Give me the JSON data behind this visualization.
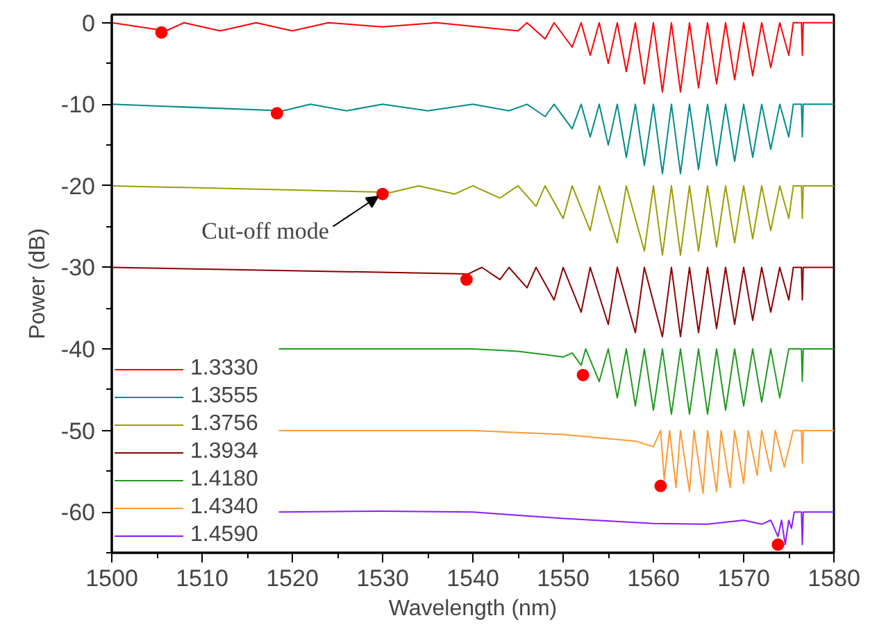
{
  "chart_data": {
    "type": "line",
    "xlabel": "Wavelength (nm)",
    "ylabel": "Power (dB)",
    "xlim": [
      1500,
      1580
    ],
    "ylim": [
      -65,
      1
    ],
    "xticks": [
      1500,
      {
        "value": 1505,
        "label": null
      },
      1510,
      {
        "value": 1515,
        "label": null
      },
      1520,
      {
        "value": 1525,
        "label": null
      },
      1530,
      {
        "value": 1535,
        "label": null
      },
      1540,
      {
        "value": 1545,
        "label": null
      },
      1550,
      {
        "value": 1555,
        "label": null
      },
      1560,
      {
        "value": 1565,
        "label": null
      },
      1570,
      {
        "value": 1575,
        "label": null
      },
      1580
    ],
    "yticks": [
      0,
      {
        "value": -5,
        "label": null
      },
      -10,
      {
        "value": -15,
        "label": null
      },
      -20,
      {
        "value": -25,
        "label": null
      },
      -30,
      {
        "value": -35,
        "label": null
      },
      -40,
      {
        "value": -45,
        "label": null
      },
      -50,
      {
        "value": -55,
        "label": null
      },
      -60,
      {
        "value": -65,
        "label": null
      }
    ],
    "grid": false,
    "legend": "bottom left",
    "marker": "none",
    "line_style": "solid",
    "annotations": [
      {
        "text": "Cut-off mode",
        "x": 1530,
        "y": -21
      }
    ],
    "series": [
      {
        "name": "1.3330",
        "color": "#ff0000",
        "x": [
          1500,
          1506,
          1508,
          1512,
          1516,
          1520,
          1524,
          1530,
          1536,
          1545,
          1546,
          1548,
          1549,
          1551,
          1552,
          1553,
          1554,
          1555,
          1556,
          1557,
          1558,
          1559,
          1560,
          1561,
          1562,
          1563,
          1564,
          1565,
          1566,
          1567,
          1568,
          1569,
          1570,
          1571,
          1572,
          1573,
          1574,
          1575,
          1575.5,
          1576.4,
          1576.5,
          1576.6,
          1580
        ],
        "values": [
          0,
          -1,
          0,
          -1,
          0,
          -1,
          0,
          -0.5,
          0,
          -1,
          0,
          -2,
          0,
          -3,
          0,
          -4,
          0,
          -5,
          0,
          -6,
          0,
          -7.5,
          0,
          -8.5,
          0,
          -8.5,
          0,
          -8,
          0,
          -7.5,
          0,
          -7,
          0,
          -6.5,
          0,
          -5.5,
          0,
          -4,
          0,
          0,
          -4,
          0,
          0
        ]
      },
      {
        "name": "1.3555",
        "color": "#008b8b",
        "x": [
          1500,
          1519,
          1522,
          1526,
          1530,
          1535,
          1540,
          1544,
          1546,
          1548,
          1549,
          1551,
          1552,
          1553,
          1554,
          1555,
          1556,
          1557,
          1558,
          1559,
          1560,
          1561,
          1562,
          1563,
          1564,
          1565,
          1566,
          1567,
          1568,
          1569,
          1570,
          1571,
          1572,
          1573,
          1574,
          1575,
          1575.5,
          1576.4,
          1576.5,
          1576.6,
          1580
        ],
        "values": [
          -10,
          -10.8,
          -10,
          -10.8,
          -10,
          -10.8,
          -10,
          -10.8,
          -10,
          -11.5,
          -10,
          -13,
          -10,
          -14,
          -10,
          -15,
          -10,
          -16.5,
          -10,
          -17.5,
          -10,
          -18.5,
          -10,
          -18.5,
          -10,
          -18,
          -10,
          -17.5,
          -10,
          -17,
          -10,
          -16.5,
          -10,
          -15.5,
          -10,
          -14,
          -10,
          -10,
          -14,
          -10,
          -10
        ]
      },
      {
        "name": "1.3756",
        "color": "#9c9c00",
        "x": [
          1500,
          1531,
          1534,
          1538,
          1540,
          1543,
          1545,
          1547,
          1548,
          1550,
          1551,
          1553,
          1554,
          1556,
          1557,
          1559,
          1560,
          1561,
          1562,
          1563,
          1564,
          1565,
          1566,
          1567,
          1568,
          1569,
          1570,
          1571,
          1572,
          1573,
          1574,
          1575,
          1575.5,
          1576.4,
          1576.5,
          1576.6,
          1580
        ],
        "values": [
          -20,
          -20.8,
          -20,
          -21,
          -20,
          -21.5,
          -20,
          -22.5,
          -20,
          -24,
          -20,
          -25.5,
          -20,
          -27,
          -20,
          -28,
          -20,
          -28.5,
          -20,
          -28.5,
          -20,
          -28,
          -20,
          -27.5,
          -20,
          -27,
          -20,
          -26.5,
          -20,
          -25.5,
          -20,
          -24,
          -20,
          -20,
          -24,
          -20,
          -20
        ]
      },
      {
        "name": "1.3934",
        "color": "#8b0000",
        "x": [
          1500,
          1539.5,
          1541,
          1543,
          1544,
          1546,
          1547,
          1549,
          1550,
          1552,
          1553,
          1555,
          1556,
          1558,
          1559,
          1561,
          1562,
          1563,
          1564,
          1565,
          1566,
          1567,
          1568,
          1569,
          1570,
          1571,
          1572,
          1573,
          1574,
          1575,
          1575.5,
          1576.4,
          1576.5,
          1576.6,
          1580
        ],
        "values": [
          -30,
          -30.8,
          -30,
          -31.5,
          -30,
          -32.5,
          -30,
          -34,
          -30,
          -35.5,
          -30,
          -37,
          -30,
          -38,
          -30,
          -38.5,
          -30,
          -38.5,
          -30,
          -38,
          -30,
          -37.5,
          -30,
          -37,
          -30,
          -36.5,
          -30,
          -35.5,
          -30,
          -34,
          -30,
          -30,
          -34,
          -30,
          -30
        ]
      },
      {
        "name": "1.4180",
        "color": "#1e9a1e",
        "x": [
          1518.5,
          1540,
          1545,
          1548,
          1550,
          1551,
          1552,
          1552.5,
          1554,
          1555,
          1556,
          1557,
          1558,
          1559,
          1560,
          1561,
          1562,
          1563,
          1564,
          1565,
          1566,
          1567,
          1568,
          1569,
          1570,
          1571,
          1572,
          1573,
          1574,
          1575,
          1575.5,
          1576.4,
          1576.5,
          1576.6,
          1580
        ],
        "values": [
          -40,
          -40,
          -40.3,
          -40.7,
          -41,
          -40.5,
          -42,
          -40,
          -44,
          -40,
          -46,
          -40,
          -47,
          -40,
          -47.5,
          -40,
          -48,
          -40,
          -48,
          -40,
          -48,
          -40,
          -47.5,
          -40,
          -47,
          -40,
          -46.5,
          -40,
          -46,
          -40,
          -40,
          -40,
          -44,
          -40,
          -40
        ]
      },
      {
        "name": "1.4340",
        "color": "#ff9933",
        "x": [
          1518.5,
          1540,
          1550,
          1555,
          1558,
          1560,
          1560.8,
          1561.2,
          1561.8,
          1562.5,
          1563,
          1564,
          1564.5,
          1565.5,
          1566,
          1567,
          1567.5,
          1568.5,
          1569,
          1570,
          1570.5,
          1571.5,
          1572,
          1573,
          1573.5,
          1574.5,
          1575.5,
          1576.4,
          1576.5,
          1576.6,
          1580
        ],
        "values": [
          -50,
          -50,
          -50.5,
          -51,
          -51.3,
          -52,
          -50,
          -56,
          -50,
          -57,
          -50,
          -57.5,
          -50,
          -57.7,
          -50,
          -57.5,
          -50,
          -57,
          -50,
          -56.5,
          -50,
          -55.5,
          -50,
          -55,
          -50,
          -54.5,
          -50,
          -50,
          -54,
          -50,
          -50
        ]
      },
      {
        "name": "1.4590",
        "color": "#8b1aff",
        "x": [
          1518.5,
          1530,
          1540,
          1550,
          1560,
          1566,
          1570,
          1572,
          1573,
          1573.8,
          1574.2,
          1574.6,
          1575,
          1575.3,
          1575.6,
          1576.4,
          1576.5,
          1576.6,
          1580
        ],
        "values": [
          -60,
          -59.9,
          -60,
          -60.8,
          -61.4,
          -61.5,
          -61,
          -61.5,
          -61,
          -63,
          -61,
          -64,
          -61,
          -62,
          -60,
          -60,
          -64,
          -60,
          -60
        ]
      },
      {
        "type": "scatter",
        "marker": "circle",
        "color": "#ff0000",
        "x": [
          1505.5,
          1518.3,
          1530,
          1539.3,
          1552.2,
          1560.8,
          1573.8
        ],
        "values": [
          -1.2,
          -11.1,
          -21,
          -31.5,
          -43.2,
          -56.8,
          -64
        ]
      }
    ]
  }
}
